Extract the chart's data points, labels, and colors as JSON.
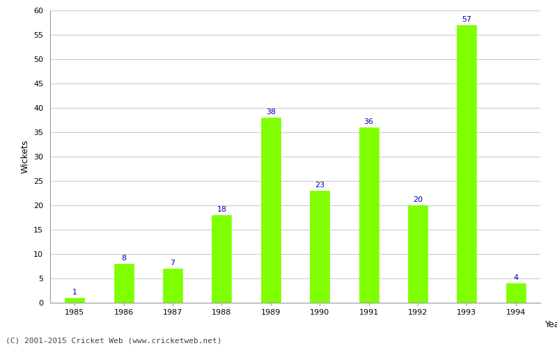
{
  "years": [
    "1985",
    "1986",
    "1987",
    "1988",
    "1989",
    "1990",
    "1991",
    "1992",
    "1993",
    "1994"
  ],
  "values": [
    1,
    8,
    7,
    18,
    38,
    23,
    36,
    20,
    57,
    4
  ],
  "bar_color": "#7fff00",
  "bar_edge_color": "#7fff00",
  "label_color": "#0000aa",
  "xlabel": "Year",
  "ylabel": "Wickets",
  "ylim": [
    0,
    60
  ],
  "yticks": [
    0,
    5,
    10,
    15,
    20,
    25,
    30,
    35,
    40,
    45,
    50,
    55,
    60
  ],
  "grid_color": "#cccccc",
  "background_color": "#ffffff",
  "footer_text": "(C) 2001-2015 Cricket Web (www.cricketweb.net)",
  "label_fontsize": 8,
  "axis_label_fontsize": 9,
  "tick_fontsize": 8,
  "footer_fontsize": 8
}
